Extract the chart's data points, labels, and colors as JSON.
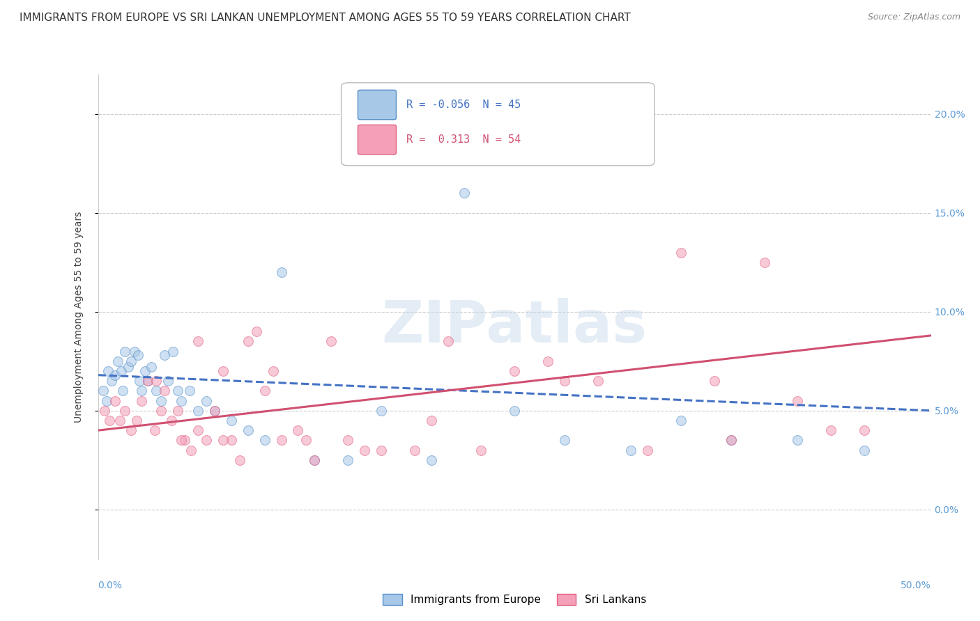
{
  "title": "IMMIGRANTS FROM EUROPE VS SRI LANKAN UNEMPLOYMENT AMONG AGES 55 TO 59 YEARS CORRELATION CHART",
  "source": "Source: ZipAtlas.com",
  "ylabel": "Unemployment Among Ages 55 to 59 years",
  "ytick_labels": [
    "0.0%",
    "5.0%",
    "10.0%",
    "15.0%",
    "20.0%"
  ],
  "ytick_values": [
    0.0,
    5.0,
    10.0,
    15.0,
    20.0
  ],
  "xmin": 0.0,
  "xmax": 50.0,
  "ymin": -2.5,
  "ymax": 22.0,
  "legend_R_blue": "-0.056",
  "legend_N_blue": "45",
  "legend_R_pink": "0.313",
  "legend_N_pink": "54",
  "blue_scatter_x": [
    0.3,
    0.5,
    0.6,
    0.8,
    1.0,
    1.2,
    1.4,
    1.5,
    1.6,
    1.8,
    2.0,
    2.2,
    2.4,
    2.5,
    2.6,
    2.8,
    3.0,
    3.2,
    3.5,
    3.8,
    4.0,
    4.2,
    4.5,
    4.8,
    5.0,
    5.5,
    6.0,
    6.5,
    7.0,
    8.0,
    9.0,
    10.0,
    11.0,
    13.0,
    15.0,
    17.0,
    20.0,
    22.0,
    25.0,
    28.0,
    32.0,
    35.0,
    38.0,
    42.0,
    46.0
  ],
  "blue_scatter_y": [
    6.0,
    5.5,
    7.0,
    6.5,
    6.8,
    7.5,
    7.0,
    6.0,
    8.0,
    7.2,
    7.5,
    8.0,
    7.8,
    6.5,
    6.0,
    7.0,
    6.5,
    7.2,
    6.0,
    5.5,
    7.8,
    6.5,
    8.0,
    6.0,
    5.5,
    6.0,
    5.0,
    5.5,
    5.0,
    4.5,
    4.0,
    3.5,
    12.0,
    2.5,
    2.5,
    5.0,
    2.5,
    16.0,
    5.0,
    3.5,
    3.0,
    4.5,
    3.5,
    3.5,
    3.0
  ],
  "pink_scatter_x": [
    0.4,
    0.7,
    1.0,
    1.3,
    1.6,
    2.0,
    2.3,
    2.6,
    3.0,
    3.4,
    3.8,
    4.0,
    4.4,
    4.8,
    5.2,
    5.6,
    6.0,
    6.5,
    7.0,
    7.5,
    8.0,
    8.5,
    9.0,
    9.5,
    10.0,
    11.0,
    12.0,
    13.0,
    14.0,
    15.0,
    17.0,
    19.0,
    21.0,
    23.0,
    25.0,
    27.0,
    30.0,
    33.0,
    35.0,
    37.0,
    40.0,
    42.0,
    44.0,
    46.0,
    3.5,
    5.0,
    6.0,
    7.5,
    10.5,
    12.5,
    16.0,
    20.0,
    28.0,
    38.0
  ],
  "pink_scatter_y": [
    5.0,
    4.5,
    5.5,
    4.5,
    5.0,
    4.0,
    4.5,
    5.5,
    6.5,
    4.0,
    5.0,
    6.0,
    4.5,
    5.0,
    3.5,
    3.0,
    4.0,
    3.5,
    5.0,
    7.0,
    3.5,
    2.5,
    8.5,
    9.0,
    6.0,
    3.5,
    4.0,
    2.5,
    8.5,
    3.5,
    3.0,
    3.0,
    8.5,
    3.0,
    7.0,
    7.5,
    6.5,
    3.0,
    13.0,
    6.5,
    12.5,
    5.5,
    4.0,
    4.0,
    6.5,
    3.5,
    8.5,
    3.5,
    7.0,
    3.5,
    3.0,
    4.5,
    6.5,
    3.5
  ],
  "blue_line_x": [
    0.0,
    50.0
  ],
  "blue_line_y": [
    6.8,
    5.0
  ],
  "pink_line_x": [
    0.0,
    50.0
  ],
  "pink_line_y": [
    4.0,
    8.8
  ],
  "watermark_text": "ZIPatlas",
  "dot_size": 100,
  "dot_alpha": 0.55,
  "blue_fill": "#a8c8e8",
  "pink_fill": "#f4a0b8",
  "blue_edge": "#5590c8",
  "pink_edge": "#e06080",
  "blue_line_color": "#4472c4",
  "pink_line_color": "#d05070",
  "axis_tick_color": "#5b9bd5",
  "grid_color": "#cccccc",
  "background_color": "#ffffff",
  "title_fontsize": 11,
  "source_fontsize": 9,
  "ylabel_fontsize": 10,
  "tick_fontsize": 10,
  "legend_label_blue": "Immigrants from Europe",
  "legend_label_pink": "Sri Lankans"
}
